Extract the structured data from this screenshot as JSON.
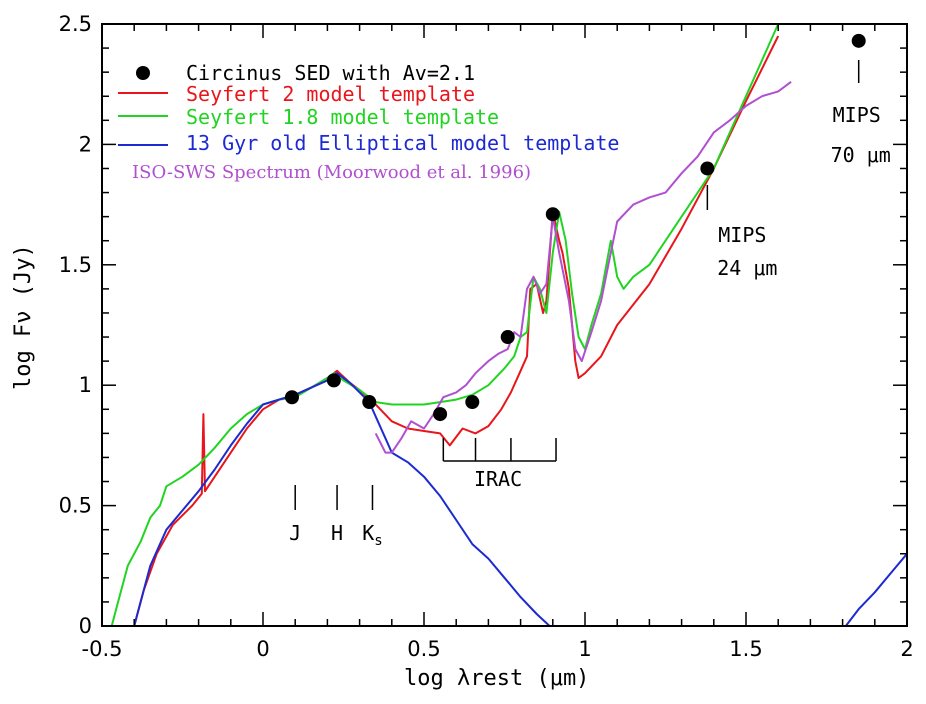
{
  "chart_data": {
    "type": "line",
    "xlabel": "log λrest     (μm)",
    "ylabel": "log Fν (Jy)",
    "xlim": [
      -0.5,
      2
    ],
    "ylim": [
      0,
      2.5
    ],
    "x_ticks": [
      "-0.5",
      "0",
      "0.5",
      "1",
      "1.5",
      "2"
    ],
    "y_ticks": [
      "0",
      "0.5",
      "1",
      "1.5",
      "2",
      "2.5"
    ],
    "legend": [
      {
        "label": "Circinus SED with Av=2.1",
        "color": "#000000",
        "marker": "dot"
      },
      {
        "label": "Seyfert 2 model template",
        "color": "#e8161c"
      },
      {
        "label": "Seyfert 1.8 model template",
        "color": "#22d422"
      },
      {
        "label": "13 Gyr old Elliptical model template",
        "color": "#1c2ad0"
      }
    ],
    "iso_label": "ISO-SWS Spectrum (Moorwood et al. 1996)",
    "iso_color": "#b050d0",
    "sed_points": {
      "x": [
        0.09,
        0.22,
        0.33,
        0.55,
        0.65,
        0.76,
        0.9,
        1.38,
        1.85
      ],
      "y": [
        0.95,
        1.02,
        0.93,
        0.88,
        0.93,
        1.2,
        1.71,
        1.9,
        2.43
      ]
    },
    "series": [
      {
        "name": "Seyfert 2 model template",
        "color": "#e8161c",
        "x": [
          -0.4,
          -0.37,
          -0.33,
          -0.28,
          -0.22,
          -0.19,
          -0.185,
          -0.18,
          -0.15,
          -0.1,
          -0.05,
          0.0,
          0.05,
          0.1,
          0.15,
          0.2,
          0.23,
          0.27,
          0.3,
          0.35,
          0.4,
          0.45,
          0.5,
          0.55,
          0.58,
          0.62,
          0.66,
          0.7,
          0.74,
          0.77,
          0.8,
          0.82,
          0.83,
          0.85,
          0.87,
          0.88,
          0.9,
          0.92,
          0.93,
          0.95,
          0.96,
          0.97,
          0.98,
          1.0,
          1.05,
          1.1,
          1.2,
          1.3,
          1.4,
          1.5,
          1.6
        ],
        "y": [
          0.0,
          0.15,
          0.3,
          0.42,
          0.5,
          0.55,
          0.88,
          0.56,
          0.62,
          0.72,
          0.82,
          0.9,
          0.94,
          0.96,
          0.99,
          1.03,
          1.06,
          1.01,
          0.98,
          0.92,
          0.85,
          0.82,
          0.81,
          0.8,
          0.75,
          0.82,
          0.8,
          0.83,
          0.9,
          0.97,
          1.06,
          1.12,
          1.4,
          1.42,
          1.3,
          1.35,
          1.72,
          1.6,
          1.55,
          1.4,
          1.25,
          1.1,
          1.03,
          1.05,
          1.12,
          1.25,
          1.42,
          1.65,
          1.9,
          2.18,
          2.45
        ]
      },
      {
        "name": "Seyfert 1.8 model template",
        "color": "#22d422",
        "x": [
          -0.47,
          -0.45,
          -0.42,
          -0.38,
          -0.35,
          -0.32,
          -0.3,
          -0.25,
          -0.2,
          -0.15,
          -0.1,
          -0.05,
          0.0,
          0.05,
          0.1,
          0.15,
          0.2,
          0.22,
          0.25,
          0.3,
          0.35,
          0.4,
          0.45,
          0.5,
          0.55,
          0.6,
          0.65,
          0.7,
          0.75,
          0.78,
          0.8,
          0.82,
          0.84,
          0.86,
          0.88,
          0.9,
          0.92,
          0.94,
          0.96,
          0.98,
          1.0,
          1.02,
          1.05,
          1.08,
          1.1,
          1.12,
          1.15,
          1.2,
          1.25,
          1.3,
          1.4,
          1.5,
          1.6
        ],
        "y": [
          0.0,
          0.1,
          0.25,
          0.35,
          0.45,
          0.5,
          0.58,
          0.62,
          0.67,
          0.74,
          0.82,
          0.88,
          0.92,
          0.94,
          0.95,
          0.99,
          1.03,
          1.05,
          1.02,
          0.98,
          0.93,
          0.92,
          0.92,
          0.92,
          0.93,
          0.94,
          0.96,
          1.0,
          1.07,
          1.12,
          1.2,
          1.22,
          1.45,
          1.4,
          1.3,
          1.55,
          1.72,
          1.6,
          1.38,
          1.2,
          1.15,
          1.25,
          1.38,
          1.6,
          1.45,
          1.4,
          1.45,
          1.5,
          1.6,
          1.7,
          1.9,
          2.2,
          2.5
        ]
      },
      {
        "name": "13 Gyr old Elliptical model template",
        "color": "#1c2ad0",
        "x": [
          -0.4,
          -0.38,
          -0.35,
          -0.3,
          -0.25,
          -0.2,
          -0.15,
          -0.1,
          -0.05,
          0.0,
          0.05,
          0.1,
          0.15,
          0.2,
          0.23,
          0.27,
          0.3,
          0.33,
          0.36,
          0.38,
          0.4,
          0.45,
          0.5,
          0.55,
          0.6,
          0.65,
          0.7,
          0.75,
          0.8,
          0.85,
          0.89
        ],
        "y": [
          0.0,
          0.1,
          0.25,
          0.4,
          0.48,
          0.56,
          0.65,
          0.75,
          0.84,
          0.92,
          0.94,
          0.96,
          0.99,
          1.02,
          1.05,
          1.01,
          0.97,
          0.93,
          0.84,
          0.78,
          0.72,
          0.68,
          0.62,
          0.54,
          0.44,
          0.34,
          0.28,
          0.2,
          0.12,
          0.05,
          0.0
        ]
      },
      {
        "name": "13 Gyr old Elliptical model template (tail)",
        "color": "#1c2ad0",
        "x": [
          1.81,
          1.85,
          1.9,
          1.95,
          2.0
        ],
        "y": [
          0.0,
          0.07,
          0.14,
          0.22,
          0.3
        ]
      },
      {
        "name": "ISO-SWS Spectrum (Moorwood et al. 1996)",
        "color": "#b050d0",
        "x": [
          0.35,
          0.38,
          0.4,
          0.43,
          0.46,
          0.5,
          0.53,
          0.56,
          0.6,
          0.63,
          0.66,
          0.7,
          0.73,
          0.76,
          0.78,
          0.8,
          0.82,
          0.84,
          0.86,
          0.88,
          0.9,
          0.92,
          0.95,
          0.97,
          0.99,
          1.02,
          1.05,
          1.08,
          1.1,
          1.15,
          1.2,
          1.25,
          1.3,
          1.35,
          1.4,
          1.45,
          1.5,
          1.55,
          1.6,
          1.64
        ],
        "y": [
          0.8,
          0.72,
          0.72,
          0.78,
          0.85,
          0.82,
          0.88,
          0.95,
          0.97,
          1.0,
          1.05,
          1.1,
          1.13,
          1.15,
          1.22,
          1.2,
          1.4,
          1.45,
          1.38,
          1.42,
          1.7,
          1.55,
          1.35,
          1.15,
          1.1,
          1.22,
          1.35,
          1.55,
          1.68,
          1.75,
          1.78,
          1.8,
          1.88,
          1.95,
          2.05,
          2.1,
          2.16,
          2.2,
          2.22,
          2.26
        ]
      }
    ],
    "annotations": [
      {
        "text": "J",
        "x": 0.1
      },
      {
        "text": "H",
        "x": 0.23
      },
      {
        "text": "Ks",
        "x": 0.34
      },
      {
        "text": "IRAC",
        "x": 0.73
      },
      {
        "text": "MIPS",
        "line2": "24 μm",
        "x": 1.38
      },
      {
        "text": "MIPS",
        "line2": "70 μm",
        "x": 1.85
      }
    ]
  }
}
